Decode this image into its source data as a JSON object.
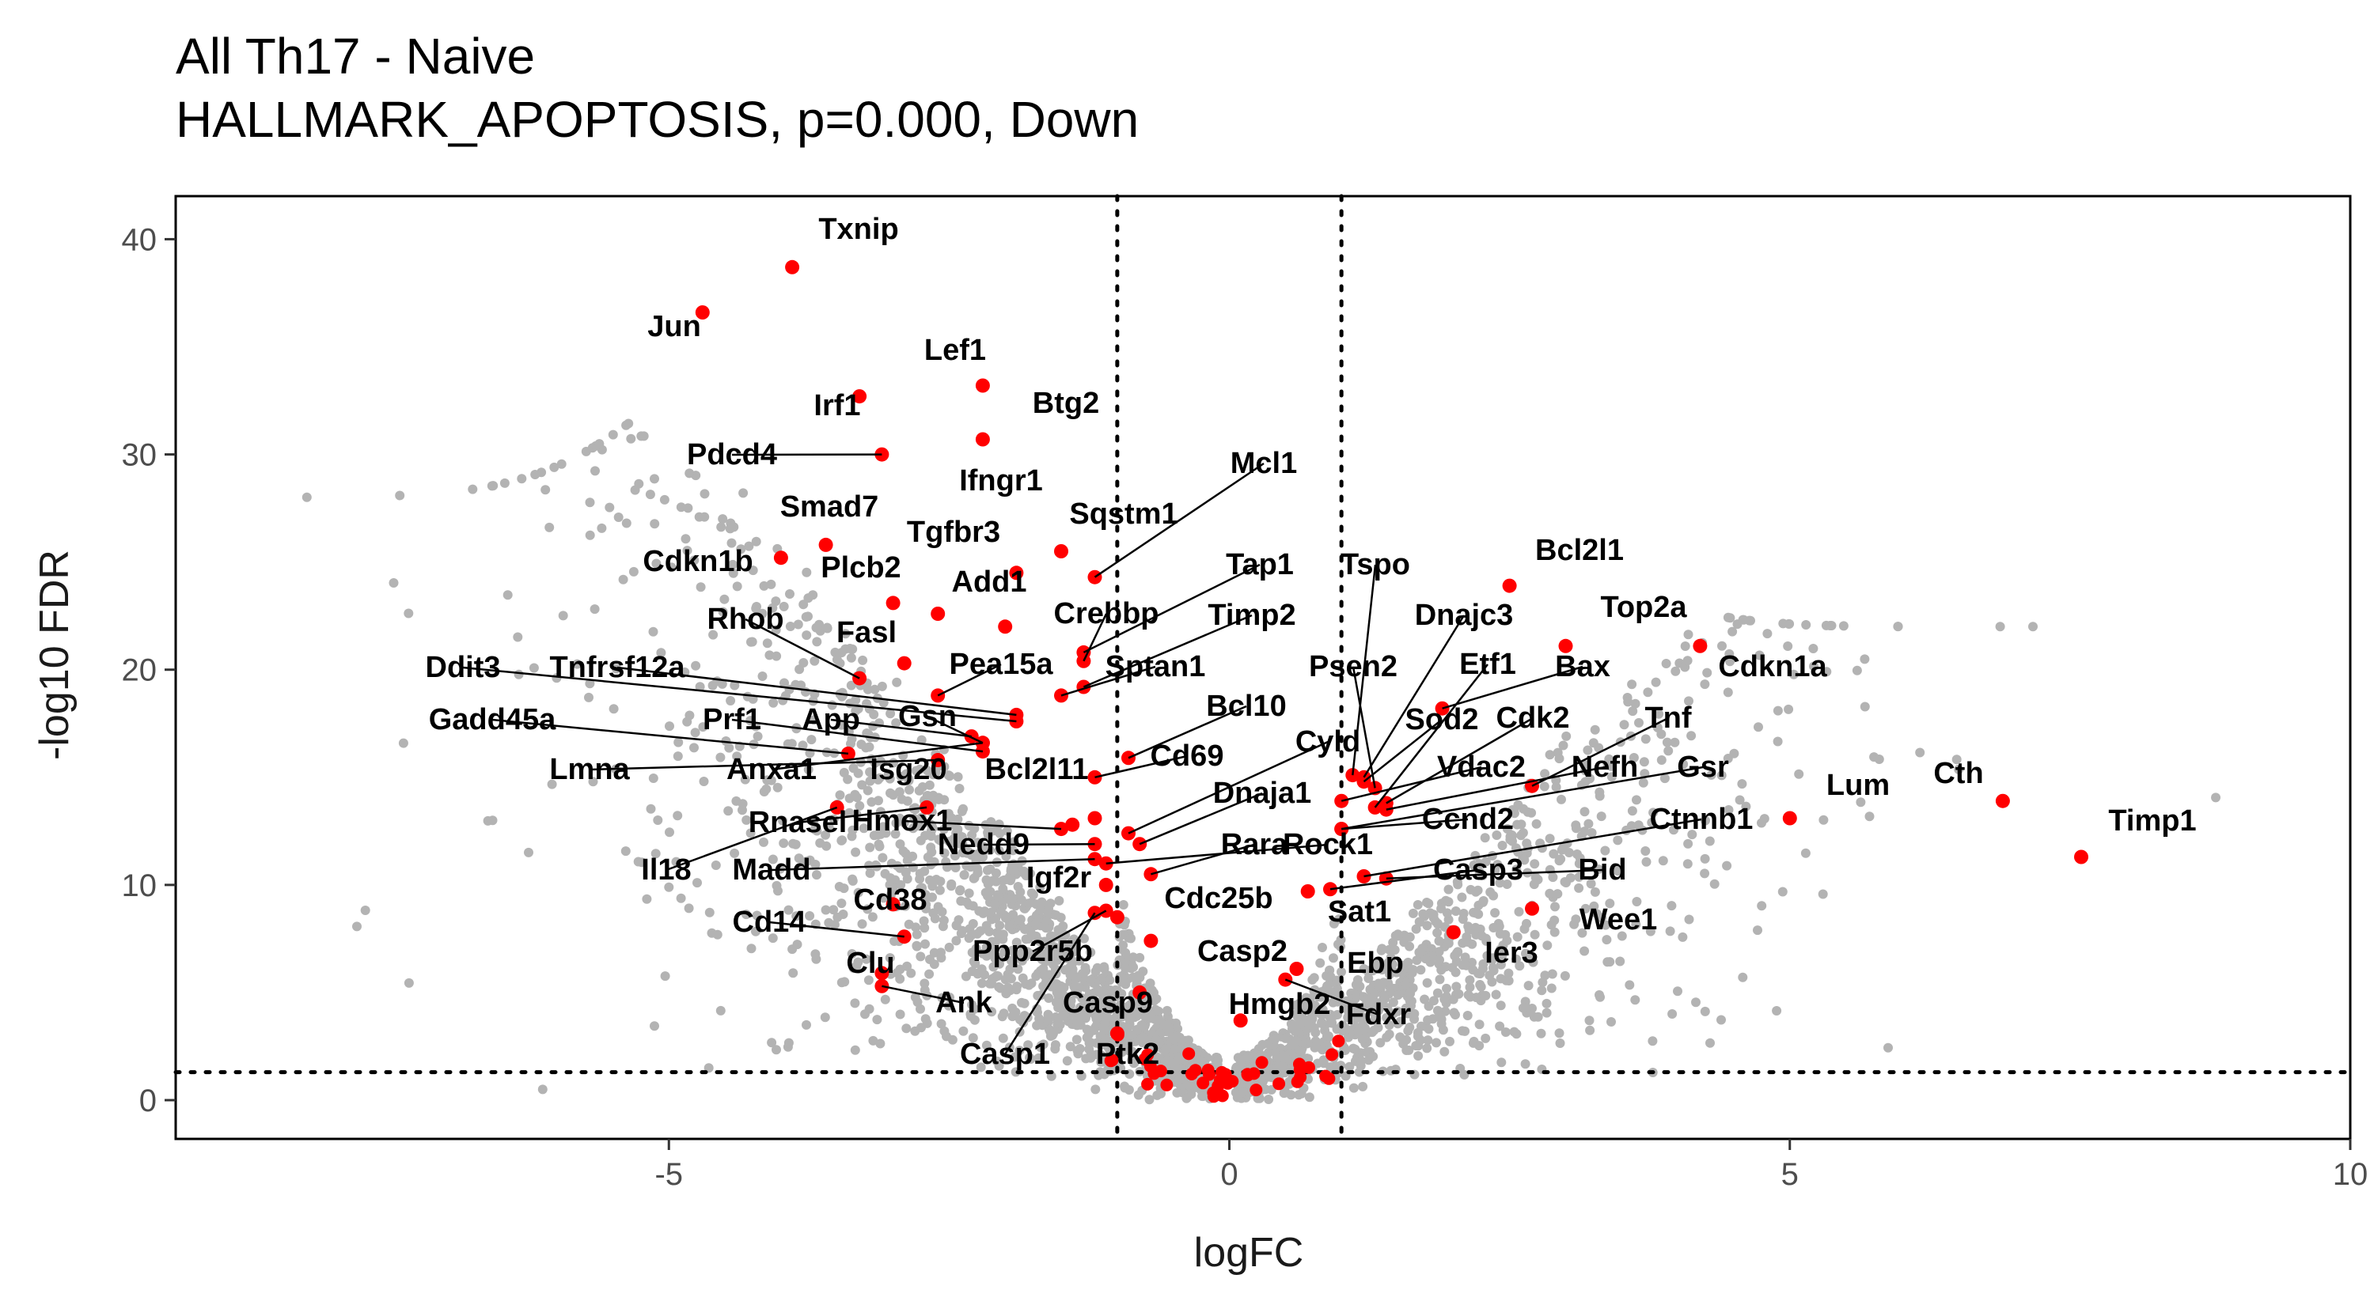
{
  "chart_data": {
    "type": "scatter",
    "title": "All Th17 - Naive",
    "subtitle": "HALLMARK_APOPTOSIS, p=0.000, Down",
    "xlabel": "logFC",
    "ylabel": "-log10 FDR",
    "xlim": [
      -9.4,
      10
    ],
    "ylim": [
      -1.8,
      42
    ],
    "xticks": [
      -5,
      0,
      5,
      10
    ],
    "yticks": [
      0,
      10,
      20,
      30,
      40
    ],
    "thresholds": {
      "logFC": [
        -1,
        1
      ],
      "neg_log10_fdr": 1.3
    },
    "colors": {
      "background_points": "#b3b3b3",
      "highlight_points": "#ff0000",
      "threshold_line": "#000000"
    },
    "grid": false,
    "legend": "none",
    "highlighted_genes": [
      {
        "label": "Txnip",
        "x": -3.9,
        "y": 38.7
      },
      {
        "label": "Jun",
        "x": -4.7,
        "y": 36.6
      },
      {
        "label": "Lef1",
        "x": -2.2,
        "y": 33.2
      },
      {
        "label": "Irf1",
        "x": -3.3,
        "y": 32.7
      },
      {
        "label": "Btg2",
        "x": -2.2,
        "y": 30.7
      },
      {
        "label": "Pdcd4",
        "x": -3.1,
        "y": 30.0
      },
      {
        "label": "Mcl1",
        "x": -1.2,
        "y": 24.3
      },
      {
        "label": "Ifngr1",
        "x": -1.9,
        "y": 24.5
      },
      {
        "label": "Sqstm1",
        "x": -1.5,
        "y": 25.5
      },
      {
        "label": "Smad7",
        "x": -3.6,
        "y": 25.8
      },
      {
        "label": "Tgfbr3",
        "x": -2.0,
        "y": 22.0
      },
      {
        "label": "Cdkn1b",
        "x": -4.0,
        "y": 25.2
      },
      {
        "label": "Plcb2",
        "x": -3.0,
        "y": 23.1
      },
      {
        "label": "Add1",
        "x": -2.6,
        "y": 22.6
      },
      {
        "label": "Tap1",
        "x": -1.3,
        "y": 20.8
      },
      {
        "label": "Tspo",
        "x": 1.1,
        "y": 15.1
      },
      {
        "label": "Bcl2l1",
        "x": 2.5,
        "y": 23.9
      },
      {
        "label": "Crebbp",
        "x": -1.3,
        "y": 20.4
      },
      {
        "label": "Timp2",
        "x": -1.3,
        "y": 19.2
      },
      {
        "label": "Dnajc3",
        "x": 1.2,
        "y": 15.0
      },
      {
        "label": "Top2a",
        "x": 3.0,
        "y": 21.1
      },
      {
        "label": "Cdkn1a",
        "x": 4.2,
        "y": 21.1
      },
      {
        "label": "Rhob",
        "x": -3.3,
        "y": 19.6
      },
      {
        "label": "Fasl",
        "x": -2.9,
        "y": 20.3
      },
      {
        "label": "Pea15a",
        "x": -2.6,
        "y": 18.8
      },
      {
        "label": "Ddit3",
        "x": -1.9,
        "y": 17.6
      },
      {
        "label": "Tnfrsf12a",
        "x": -1.9,
        "y": 17.9
      },
      {
        "label": "Sptan1",
        "x": -1.5,
        "y": 18.8
      },
      {
        "label": "Psen2",
        "x": 1.3,
        "y": 14.5
      },
      {
        "label": "Etf1",
        "x": 1.3,
        "y": 13.6
      },
      {
        "label": "Bax",
        "x": 1.9,
        "y": 18.2
      },
      {
        "label": "Bcl10",
        "x": -0.9,
        "y": 15.9
      },
      {
        "label": "App",
        "x": -2.3,
        "y": 16.9
      },
      {
        "label": "Gsn",
        "x": -2.2,
        "y": 16.6
      },
      {
        "label": "Prf1",
        "x": -2.2,
        "y": 16.2
      },
      {
        "label": "Gadd45a",
        "x": -3.4,
        "y": 16.1
      },
      {
        "label": "Sod2",
        "x": 1.2,
        "y": 14.8
      },
      {
        "label": "Cdk2",
        "x": 1.4,
        "y": 13.8
      },
      {
        "label": "Tnf",
        "x": 2.7,
        "y": 14.6
      },
      {
        "label": "Cyld",
        "x": -0.9,
        "y": 12.4
      },
      {
        "label": "Cd69",
        "x": -1.2,
        "y": 15.0
      },
      {
        "label": "Lmna",
        "x": -2.6,
        "y": 15.8
      },
      {
        "label": "Anxa1",
        "x": -2.2,
        "y": 16.6
      },
      {
        "label": "Isg20",
        "x": -1.4,
        "y": 12.8
      },
      {
        "label": "Bcl2l11",
        "x": -1.2,
        "y": 13.1
      },
      {
        "label": "Vdac2",
        "x": 1.0,
        "y": 13.9
      },
      {
        "label": "Nefh",
        "x": 1.4,
        "y": 13.5
      },
      {
        "label": "Gsr",
        "x": 1.0,
        "y": 12.6
      },
      {
        "label": "Lum",
        "x": 5.0,
        "y": 13.1
      },
      {
        "label": "Cth",
        "x": 6.9,
        "y": 13.9
      },
      {
        "label": "Timp1",
        "x": 7.6,
        "y": 11.3
      },
      {
        "label": "Dnaja1",
        "x": -0.8,
        "y": 11.9
      },
      {
        "label": "Ccnd2",
        "x": 1.0,
        "y": 12.6
      },
      {
        "label": "Ctnnb1",
        "x": 1.2,
        "y": 10.4
      },
      {
        "label": "Rnasel",
        "x": -2.7,
        "y": 13.6
      },
      {
        "label": "Hmox1",
        "x": -1.5,
        "y": 12.6
      },
      {
        "label": "Nedd9",
        "x": -1.2,
        "y": 11.9
      },
      {
        "label": "Rara",
        "x": -0.7,
        "y": 10.5
      },
      {
        "label": "Rock1",
        "x": -1.1,
        "y": 11.0
      },
      {
        "label": "Il18",
        "x": -3.5,
        "y": 13.6
      },
      {
        "label": "Madd",
        "x": -1.2,
        "y": 11.2
      },
      {
        "label": "Casp3",
        "x": 0.9,
        "y": 9.8
      },
      {
        "label": "Bid",
        "x": 1.4,
        "y": 10.3
      },
      {
        "label": "Igf2r",
        "x": -1.1,
        "y": 10.0
      },
      {
        "label": "Cdc25b",
        "x": -1.0,
        "y": 8.5
      },
      {
        "label": "Cd38",
        "x": -3.0,
        "y": 9.1
      },
      {
        "label": "Sat1",
        "x": 0.7,
        "y": 9.7
      },
      {
        "label": "Wee1",
        "x": 2.7,
        "y": 8.9
      },
      {
        "label": "Cd14",
        "x": -2.9,
        "y": 7.6
      },
      {
        "label": "Ppp2r5b",
        "x": -1.1,
        "y": 8.8
      },
      {
        "label": "Casp2",
        "x": -0.7,
        "y": 7.4
      },
      {
        "label": "Ier3",
        "x": 2.0,
        "y": 7.8
      },
      {
        "label": "Clu",
        "x": -3.1,
        "y": 5.9
      },
      {
        "label": "Ebp",
        "x": 0.6,
        "y": 6.1
      },
      {
        "label": "Ank",
        "x": -3.1,
        "y": 5.3
      },
      {
        "label": "Casp9",
        "x": -0.8,
        "y": 5.0
      },
      {
        "label": "Hmgb2",
        "x": 0.1,
        "y": 3.7
      },
      {
        "label": "Fdxr",
        "x": 0.5,
        "y": 5.6
      },
      {
        "label": "Casp1",
        "x": -1.2,
        "y": 8.7
      },
      {
        "label": "Ptk2",
        "x": -1.0,
        "y": 3.1
      }
    ]
  }
}
